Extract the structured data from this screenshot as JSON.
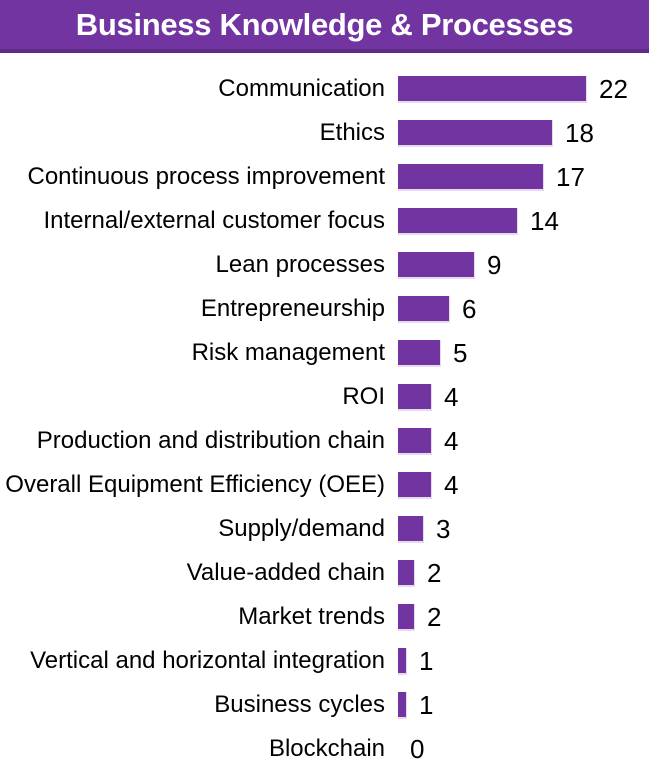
{
  "header": {
    "title": "Business Knowledge & Processes"
  },
  "colors": {
    "accent_purple": "#7134A1",
    "banner_border": "#5C2B84",
    "bar_edge_highlight": "#E7D9F0",
    "title_text": "#FFFFFF",
    "label_text": "#000000",
    "background": "#FFFFFF"
  },
  "chart_data": {
    "type": "bar",
    "orientation": "horizontal",
    "title": "Business Knowledge & Processes",
    "categories": [
      "Communication",
      "Ethics",
      "Continuous process improvement",
      "Internal/external customer focus",
      "Lean processes",
      "Entrepreneurship",
      "Risk management",
      "ROI",
      "Production and distribution chain",
      "Overall Equipment Efficiency (OEE)",
      "Supply/demand",
      "Value-added chain",
      "Market trends",
      "Vertical and horizontal integration",
      "Business cycles",
      "Blockchain"
    ],
    "values": [
      22,
      18,
      17,
      14,
      9,
      6,
      5,
      4,
      4,
      4,
      3,
      2,
      2,
      1,
      1,
      0
    ],
    "xlim": [
      0,
      22
    ],
    "data_labels": true,
    "grid": false,
    "legend": false,
    "axes_visible": false
  }
}
